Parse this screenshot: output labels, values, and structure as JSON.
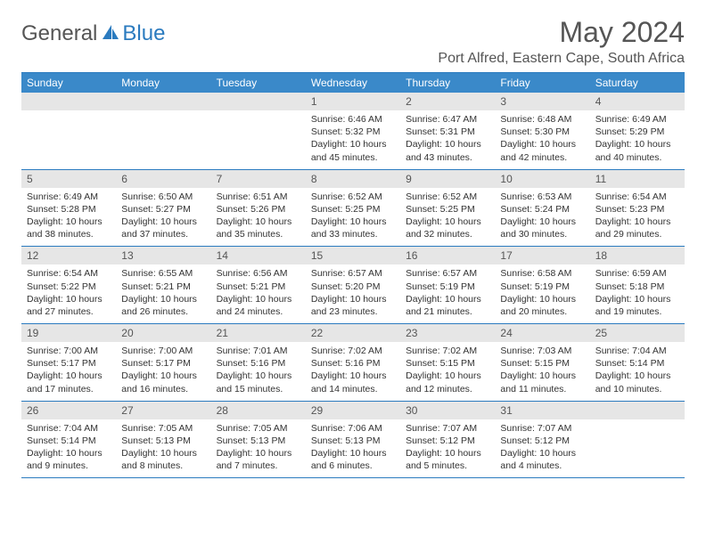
{
  "brand": {
    "word1": "General",
    "word2": "Blue"
  },
  "title": "May 2024",
  "location": "Port Alfred, Eastern Cape, South Africa",
  "colors": {
    "header_bg": "#3a89c9",
    "header_text": "#ffffff",
    "daynum_bg": "#e6e6e6",
    "rule": "#2b7bbf",
    "text": "#333333",
    "title_text": "#555555"
  },
  "dow": [
    "Sunday",
    "Monday",
    "Tuesday",
    "Wednesday",
    "Thursday",
    "Friday",
    "Saturday"
  ],
  "weeks": [
    [
      null,
      null,
      null,
      {
        "n": "1",
        "sr": "6:46 AM",
        "ss": "5:32 PM",
        "dl": "10 hours and 45 minutes."
      },
      {
        "n": "2",
        "sr": "6:47 AM",
        "ss": "5:31 PM",
        "dl": "10 hours and 43 minutes."
      },
      {
        "n": "3",
        "sr": "6:48 AM",
        "ss": "5:30 PM",
        "dl": "10 hours and 42 minutes."
      },
      {
        "n": "4",
        "sr": "6:49 AM",
        "ss": "5:29 PM",
        "dl": "10 hours and 40 minutes."
      }
    ],
    [
      {
        "n": "5",
        "sr": "6:49 AM",
        "ss": "5:28 PM",
        "dl": "10 hours and 38 minutes."
      },
      {
        "n": "6",
        "sr": "6:50 AM",
        "ss": "5:27 PM",
        "dl": "10 hours and 37 minutes."
      },
      {
        "n": "7",
        "sr": "6:51 AM",
        "ss": "5:26 PM",
        "dl": "10 hours and 35 minutes."
      },
      {
        "n": "8",
        "sr": "6:52 AM",
        "ss": "5:25 PM",
        "dl": "10 hours and 33 minutes."
      },
      {
        "n": "9",
        "sr": "6:52 AM",
        "ss": "5:25 PM",
        "dl": "10 hours and 32 minutes."
      },
      {
        "n": "10",
        "sr": "6:53 AM",
        "ss": "5:24 PM",
        "dl": "10 hours and 30 minutes."
      },
      {
        "n": "11",
        "sr": "6:54 AM",
        "ss": "5:23 PM",
        "dl": "10 hours and 29 minutes."
      }
    ],
    [
      {
        "n": "12",
        "sr": "6:54 AM",
        "ss": "5:22 PM",
        "dl": "10 hours and 27 minutes."
      },
      {
        "n": "13",
        "sr": "6:55 AM",
        "ss": "5:21 PM",
        "dl": "10 hours and 26 minutes."
      },
      {
        "n": "14",
        "sr": "6:56 AM",
        "ss": "5:21 PM",
        "dl": "10 hours and 24 minutes."
      },
      {
        "n": "15",
        "sr": "6:57 AM",
        "ss": "5:20 PM",
        "dl": "10 hours and 23 minutes."
      },
      {
        "n": "16",
        "sr": "6:57 AM",
        "ss": "5:19 PM",
        "dl": "10 hours and 21 minutes."
      },
      {
        "n": "17",
        "sr": "6:58 AM",
        "ss": "5:19 PM",
        "dl": "10 hours and 20 minutes."
      },
      {
        "n": "18",
        "sr": "6:59 AM",
        "ss": "5:18 PM",
        "dl": "10 hours and 19 minutes."
      }
    ],
    [
      {
        "n": "19",
        "sr": "7:00 AM",
        "ss": "5:17 PM",
        "dl": "10 hours and 17 minutes."
      },
      {
        "n": "20",
        "sr": "7:00 AM",
        "ss": "5:17 PM",
        "dl": "10 hours and 16 minutes."
      },
      {
        "n": "21",
        "sr": "7:01 AM",
        "ss": "5:16 PM",
        "dl": "10 hours and 15 minutes."
      },
      {
        "n": "22",
        "sr": "7:02 AM",
        "ss": "5:16 PM",
        "dl": "10 hours and 14 minutes."
      },
      {
        "n": "23",
        "sr": "7:02 AM",
        "ss": "5:15 PM",
        "dl": "10 hours and 12 minutes."
      },
      {
        "n": "24",
        "sr": "7:03 AM",
        "ss": "5:15 PM",
        "dl": "10 hours and 11 minutes."
      },
      {
        "n": "25",
        "sr": "7:04 AM",
        "ss": "5:14 PM",
        "dl": "10 hours and 10 minutes."
      }
    ],
    [
      {
        "n": "26",
        "sr": "7:04 AM",
        "ss": "5:14 PM",
        "dl": "10 hours and 9 minutes."
      },
      {
        "n": "27",
        "sr": "7:05 AM",
        "ss": "5:13 PM",
        "dl": "10 hours and 8 minutes."
      },
      {
        "n": "28",
        "sr": "7:05 AM",
        "ss": "5:13 PM",
        "dl": "10 hours and 7 minutes."
      },
      {
        "n": "29",
        "sr": "7:06 AM",
        "ss": "5:13 PM",
        "dl": "10 hours and 6 minutes."
      },
      {
        "n": "30",
        "sr": "7:07 AM",
        "ss": "5:12 PM",
        "dl": "10 hours and 5 minutes."
      },
      {
        "n": "31",
        "sr": "7:07 AM",
        "ss": "5:12 PM",
        "dl": "10 hours and 4 minutes."
      },
      null
    ]
  ],
  "labels": {
    "sunrise": "Sunrise:",
    "sunset": "Sunset:",
    "daylight": "Daylight:"
  }
}
